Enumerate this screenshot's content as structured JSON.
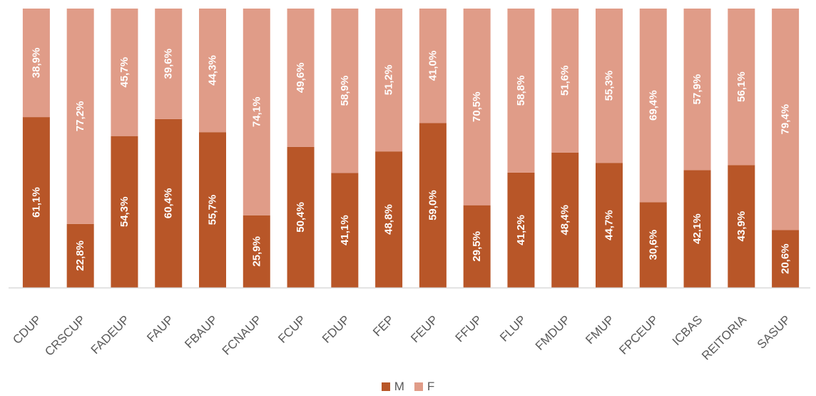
{
  "chart_data": {
    "type": "bar",
    "stacked": true,
    "percent_stacked": true,
    "categories": [
      "CDUP",
      "CRSCUP",
      "FADEUP",
      "FAUP",
      "FBAUP",
      "FCNAUP",
      "FCUP",
      "FDUP",
      "FEP",
      "FEUP",
      "FFUP",
      "FLUP",
      "FMDUP",
      "FMUP",
      "FPCEUP",
      "ICBAS",
      "REITORIA",
      "SASUP"
    ],
    "series": [
      {
        "name": "M",
        "color": "#b85628",
        "values": [
          61.1,
          22.8,
          54.3,
          60.4,
          55.7,
          25.9,
          50.4,
          41.1,
          48.8,
          59.0,
          29.5,
          41.2,
          48.4,
          44.7,
          30.6,
          42.1,
          43.9,
          20.6
        ],
        "labels": [
          "61,1%",
          "22,8%",
          "54,3%",
          "60,4%",
          "55,7%",
          "25,9%",
          "50,4%",
          "41,1%",
          "48,8%",
          "59,0%",
          "29,5%",
          "41,2%",
          "48,4%",
          "44,7%",
          "30,6%",
          "42,1%",
          "43,9%",
          "20,6%"
        ]
      },
      {
        "name": "F",
        "color": "#e09c88",
        "values": [
          38.9,
          77.2,
          45.7,
          39.6,
          44.3,
          74.1,
          49.6,
          58.9,
          51.2,
          41.0,
          70.5,
          58.8,
          51.6,
          55.3,
          69.4,
          57.9,
          56.1,
          79.4
        ],
        "labels": [
          "38,9%",
          "77,2%",
          "45,7%",
          "39,6%",
          "44,3%",
          "74,1%",
          "49,6%",
          "58,9%",
          "51,2%",
          "41,0%",
          "70,5%",
          "58,8%",
          "51,6%",
          "55,3%",
          "69,4%",
          "57,9%",
          "56,1%",
          "79,4%"
        ]
      }
    ],
    "ylim": [
      0,
      100
    ],
    "grid": false,
    "legend": "bottom-center",
    "axis_color": "#d9d9d9"
  }
}
